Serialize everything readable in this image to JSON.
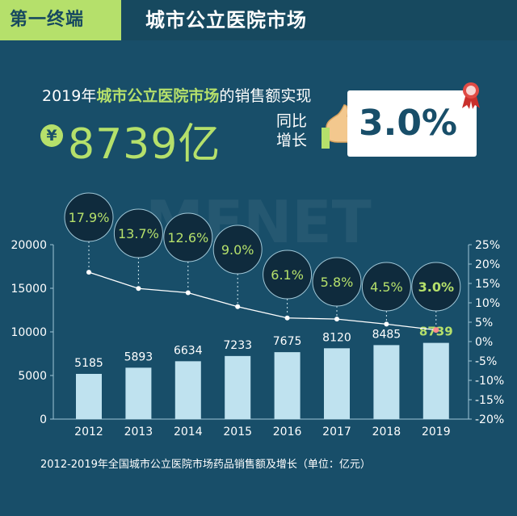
{
  "header": {
    "tag": "第一终端",
    "title": "城市公立医院市场"
  },
  "summary": {
    "prefix": "2019年",
    "highlight": "城市公立医院市场",
    "suffix": "的销售额实现",
    "currency": "¥",
    "value": "8739亿",
    "yoy_label": "同比增长",
    "growth": "3.0%"
  },
  "watermark": "MENET",
  "chart_data": {
    "type": "bar",
    "categories": [
      "2012",
      "2013",
      "2014",
      "2015",
      "2016",
      "2017",
      "2018",
      "2019"
    ],
    "series": [
      {
        "type": "bar",
        "axis": "left",
        "values": [
          5185,
          5893,
          6634,
          7233,
          7675,
          8120,
          8485,
          8739
        ],
        "labels": [
          "5185",
          "5893",
          "6634",
          "7233",
          "7675",
          "8120",
          "8485",
          "8739"
        ]
      },
      {
        "type": "line",
        "axis": "right",
        "values": [
          17.9,
          13.7,
          12.6,
          9.0,
          6.1,
          5.8,
          4.5,
          3.0
        ],
        "labels": [
          "17.9%",
          "13.7%",
          "12.6%",
          "9.0%",
          "6.1%",
          "5.8%",
          "4.5%",
          "3.0%"
        ]
      }
    ],
    "y_left": {
      "min": 0,
      "max": 20000,
      "ticks": [
        "0",
        "5000",
        "10000",
        "15000",
        "20000"
      ]
    },
    "y_right": {
      "min": -20,
      "max": 25,
      "ticks": [
        "-20%",
        "-15%",
        "-10%",
        "-5%",
        "0%",
        "5%",
        "10%",
        "15%",
        "20%",
        "25%"
      ]
    },
    "caption": "2012-2019年全国城市公立医院市场药品销售额及增长（单位：亿元）",
    "colors": {
      "bar": "#bfe2ef",
      "line": "#ffffff",
      "label": "#b5e06b",
      "bubble": "#0f2b3d",
      "highlight_point": "#ff8a8a"
    }
  }
}
